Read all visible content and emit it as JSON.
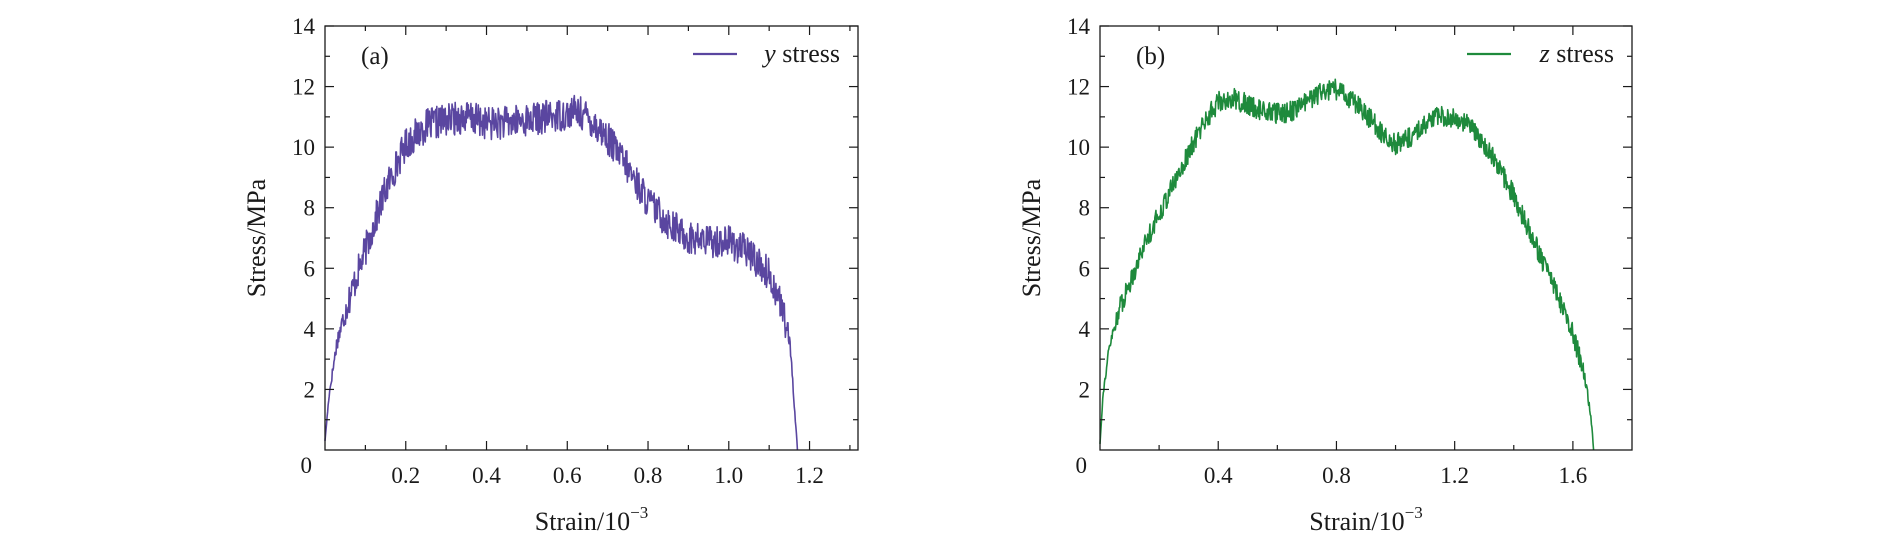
{
  "chart_data": [
    {
      "type": "line",
      "panel_label": "(a)",
      "xlabel_base": "Strain/10",
      "xlabel_exponent": "−3",
      "ylabel": "Stress/MPa",
      "xlim": [
        0,
        1.32
      ],
      "ylim": [
        0,
        14
      ],
      "x_ticks": [
        0.2,
        0.4,
        0.6,
        0.8,
        1.0,
        1.2
      ],
      "x_tick_labels": [
        "0.2",
        "0.4",
        "0.6",
        "0.8",
        "1.0",
        "1.2"
      ],
      "y_ticks": [
        2,
        4,
        6,
        8,
        10,
        12,
        14
      ],
      "y_tick_labels": [
        "2",
        "4",
        "6",
        "8",
        "10",
        "12",
        "14"
      ],
      "origin_label": "0",
      "grid": false,
      "legend_position": "top-right",
      "series": [
        {
          "name_italic": "y",
          "name_rest": " stress",
          "color": "#5a46a0",
          "noise": 0.55,
          "x": [
            0,
            0.01,
            0.03,
            0.06,
            0.1,
            0.15,
            0.2,
            0.25,
            0.3,
            0.35,
            0.4,
            0.45,
            0.5,
            0.55,
            0.6,
            0.62,
            0.65,
            0.7,
            0.75,
            0.8,
            0.85,
            0.9,
            0.95,
            1.0,
            1.05,
            1.1,
            1.13,
            1.15,
            1.16,
            1.17
          ],
          "y": [
            0.3,
            1.8,
            3.6,
            5.0,
            6.6,
            8.6,
            10.1,
            10.7,
            10.9,
            11.0,
            10.8,
            10.8,
            10.9,
            11.0,
            11.1,
            11.2,
            11.0,
            10.3,
            9.3,
            8.2,
            7.5,
            7.0,
            6.9,
            6.9,
            6.5,
            5.8,
            4.8,
            3.6,
            2.0,
            0.0
          ]
        }
      ]
    },
    {
      "type": "line",
      "panel_label": "(b)",
      "xlabel_base": "Strain/10",
      "xlabel_exponent": "−3",
      "ylabel": "Stress/MPa",
      "xlim": [
        0,
        1.8
      ],
      "ylim": [
        0,
        14
      ],
      "x_ticks": [
        0.4,
        0.8,
        1.2,
        1.6
      ],
      "x_tick_labels": [
        "0.4",
        "0.8",
        "1.2",
        "1.6"
      ],
      "y_ticks": [
        2,
        4,
        6,
        8,
        10,
        12,
        14
      ],
      "y_tick_labels": [
        "2",
        "4",
        "6",
        "8",
        "10",
        "12",
        "14"
      ],
      "origin_label": "0",
      "grid": false,
      "legend_position": "top-right",
      "series": [
        {
          "name_italic": "z",
          "name_rest": " stress",
          "color": "#1e8a3c",
          "noise": 0.35,
          "x": [
            0,
            0.01,
            0.03,
            0.06,
            0.1,
            0.15,
            0.2,
            0.25,
            0.3,
            0.35,
            0.4,
            0.45,
            0.5,
            0.55,
            0.6,
            0.65,
            0.7,
            0.75,
            0.8,
            0.85,
            0.9,
            0.95,
            1.0,
            1.05,
            1.1,
            1.15,
            1.2,
            1.25,
            1.3,
            1.35,
            1.4,
            1.45,
            1.5,
            1.55,
            1.6,
            1.64,
            1.66,
            1.67
          ],
          "y": [
            0.2,
            1.8,
            3.3,
            4.5,
            5.5,
            6.8,
            7.8,
            8.8,
            9.8,
            10.8,
            11.5,
            11.6,
            11.4,
            11.2,
            11.1,
            11.2,
            11.5,
            11.8,
            11.9,
            11.6,
            11.1,
            10.5,
            10.1,
            10.3,
            10.8,
            11.0,
            11.0,
            10.7,
            10.1,
            9.3,
            8.4,
            7.3,
            6.2,
            5.1,
            3.8,
            2.5,
            1.2,
            0.0
          ]
        }
      ]
    }
  ]
}
